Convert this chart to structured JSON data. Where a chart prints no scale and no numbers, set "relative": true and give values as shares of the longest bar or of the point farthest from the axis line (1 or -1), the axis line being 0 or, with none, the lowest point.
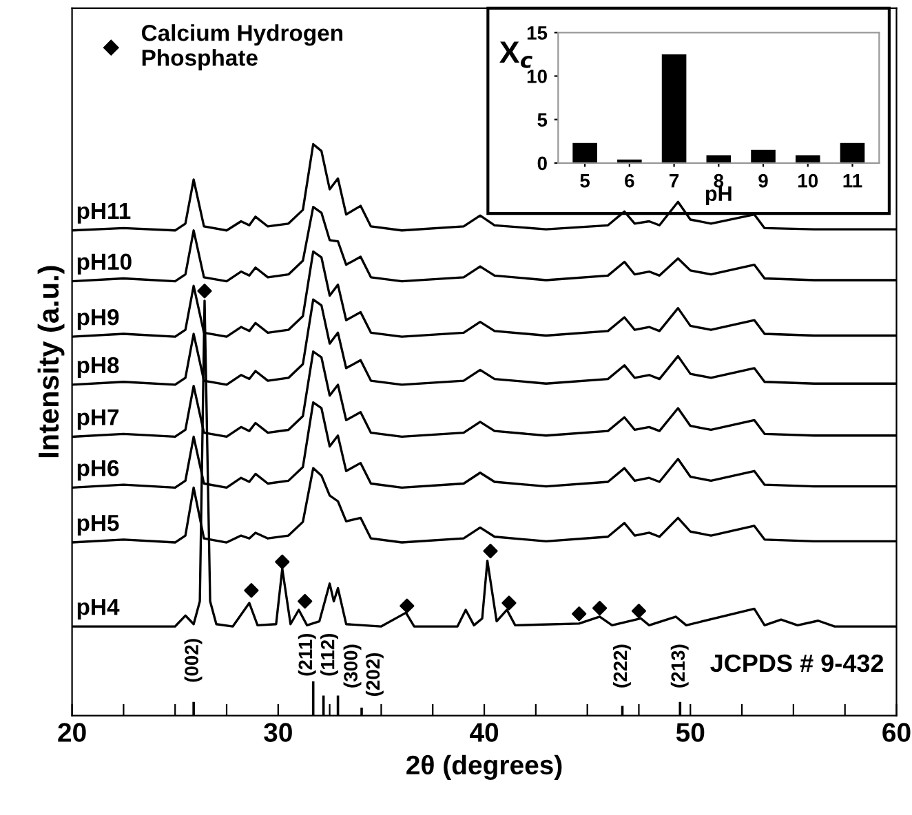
{
  "chart_data": [
    {
      "type": "line",
      "relative": true,
      "xlabel": "2θ (degrees)",
      "ylabel": "Intensity (a.u.)",
      "xlim": [
        20,
        60
      ],
      "xticks": [
        20,
        {
          "value": 22.5,
          "label": null
        },
        {
          "value": 25,
          "label": null
        },
        {
          "value": 27.5,
          "label": null
        },
        30,
        {
          "value": 32.5,
          "label": null
        },
        {
          "value": 35,
          "label": null
        },
        {
          "value": 37.5,
          "label": null
        },
        40,
        {
          "value": 42.5,
          "label": null
        },
        {
          "value": 45,
          "label": null
        },
        {
          "value": 47.5,
          "label": null
        },
        50,
        {
          "value": 52.5,
          "label": null
        },
        {
          "value": 55,
          "label": null
        },
        {
          "value": 57.5,
          "label": null
        },
        60
      ],
      "legend": "top left",
      "grid": false,
      "x": [
        20,
        22.5,
        25,
        25.5,
        25.9,
        26.4,
        27.5,
        28.2,
        28.6,
        28.9,
        29.5,
        30.5,
        31.2,
        31.7,
        32.1,
        32.5,
        32.9,
        33.3,
        34.0,
        34.5,
        36,
        39,
        39.8,
        40.5,
        43,
        46,
        46.8,
        47.3,
        48,
        48.5,
        49.4,
        50,
        51,
        53.1,
        53.6,
        56,
        60
      ],
      "series": [
        {
          "name": "pH11",
          "color": "#000000",
          "values": [
            0.849,
            0.853,
            0.849,
            0.861,
            0.938,
            0.856,
            0.849,
            0.865,
            0.858,
            0.873,
            0.856,
            0.861,
            0.885,
            1.0,
            0.988,
            0.921,
            0.94,
            0.877,
            0.892,
            0.856,
            0.849,
            0.856,
            0.875,
            0.858,
            0.851,
            0.858,
            0.882,
            0.861,
            0.865,
            0.858,
            0.899,
            0.868,
            0.861,
            0.877,
            0.853,
            0.851,
            0.851
          ]
        },
        {
          "name": "pH10",
          "color": "#000000",
          "values": [
            0.76,
            0.765,
            0.76,
            0.772,
            0.849,
            0.767,
            0.76,
            0.777,
            0.77,
            0.784,
            0.767,
            0.772,
            0.796,
            0.89,
            0.88,
            0.832,
            0.83,
            0.789,
            0.803,
            0.767,
            0.76,
            0.767,
            0.786,
            0.77,
            0.762,
            0.77,
            0.794,
            0.772,
            0.777,
            0.77,
            0.8,
            0.779,
            0.772,
            0.789,
            0.765,
            0.762,
            0.762
          ]
        },
        {
          "name": "pH9",
          "color": "#000000",
          "values": [
            0.663,
            0.668,
            0.663,
            0.675,
            0.752,
            0.67,
            0.663,
            0.68,
            0.673,
            0.687,
            0.67,
            0.675,
            0.699,
            0.812,
            0.802,
            0.735,
            0.754,
            0.692,
            0.706,
            0.67,
            0.663,
            0.67,
            0.689,
            0.673,
            0.665,
            0.673,
            0.697,
            0.675,
            0.68,
            0.673,
            0.713,
            0.682,
            0.675,
            0.692,
            0.668,
            0.665,
            0.665
          ]
        },
        {
          "name": "pH8",
          "color": "#000000",
          "values": [
            0.579,
            0.584,
            0.579,
            0.591,
            0.668,
            0.586,
            0.579,
            0.596,
            0.589,
            0.603,
            0.586,
            0.591,
            0.615,
            0.728,
            0.718,
            0.651,
            0.67,
            0.608,
            0.622,
            0.586,
            0.579,
            0.586,
            0.605,
            0.589,
            0.581,
            0.589,
            0.613,
            0.591,
            0.596,
            0.589,
            0.629,
            0.598,
            0.591,
            0.608,
            0.584,
            0.581,
            0.581
          ]
        },
        {
          "name": "pH7",
          "color": "#000000",
          "values": [
            0.488,
            0.493,
            0.488,
            0.5,
            0.577,
            0.495,
            0.488,
            0.505,
            0.498,
            0.512,
            0.495,
            0.5,
            0.524,
            0.637,
            0.627,
            0.56,
            0.579,
            0.517,
            0.531,
            0.495,
            0.488,
            0.495,
            0.514,
            0.498,
            0.49,
            0.498,
            0.522,
            0.5,
            0.505,
            0.498,
            0.538,
            0.507,
            0.5,
            0.517,
            0.493,
            0.49,
            0.49
          ]
        },
        {
          "name": "pH6",
          "color": "#000000",
          "values": [
            0.399,
            0.404,
            0.399,
            0.411,
            0.488,
            0.406,
            0.399,
            0.416,
            0.409,
            0.423,
            0.406,
            0.411,
            0.435,
            0.548,
            0.538,
            0.471,
            0.49,
            0.428,
            0.442,
            0.406,
            0.399,
            0.406,
            0.425,
            0.409,
            0.401,
            0.409,
            0.433,
            0.411,
            0.416,
            0.409,
            0.449,
            0.418,
            0.411,
            0.428,
            0.404,
            0.401,
            0.401
          ]
        },
        {
          "name": "pH5",
          "color": "#000000",
          "values": [
            0.303,
            0.308,
            0.303,
            0.315,
            0.399,
            0.31,
            0.303,
            0.315,
            0.31,
            0.32,
            0.31,
            0.315,
            0.339,
            0.433,
            0.42,
            0.385,
            0.375,
            0.34,
            0.346,
            0.31,
            0.303,
            0.31,
            0.329,
            0.313,
            0.305,
            0.313,
            0.337,
            0.315,
            0.32,
            0.313,
            0.346,
            0.322,
            0.315,
            0.332,
            0.308,
            0.305,
            0.305
          ]
        },
        {
          "name": "pH4",
          "color": "#000000",
          "x": [
            20,
            25.0,
            25.5,
            25.9,
            26.2,
            26.43,
            26.7,
            27.0,
            27.8,
            28.6,
            29.0,
            29.9,
            30.2,
            30.6,
            31.0,
            31.4,
            32.0,
            32.5,
            32.7,
            32.9,
            33.3,
            35.0,
            36.2,
            36.6,
            38.7,
            39.1,
            39.5,
            39.9,
            40.15,
            40.6,
            41.1,
            41.5,
            44.6,
            45.6,
            46.2,
            47.6,
            48.0,
            49.3,
            49.8,
            53.1,
            53.6,
            54.4,
            55.2,
            56.2,
            57,
            60
          ],
          "values": [
            0.156,
            0.156,
            0.175,
            0.16,
            0.2,
            0.726,
            0.2,
            0.16,
            0.156,
            0.197,
            0.158,
            0.16,
            0.257,
            0.16,
            0.185,
            0.158,
            0.165,
            0.231,
            0.2,
            0.223,
            0.16,
            0.156,
            0.18,
            0.156,
            0.156,
            0.185,
            0.158,
            0.17,
            0.271,
            0.165,
            0.185,
            0.158,
            0.161,
            0.173,
            0.158,
            0.17,
            0.158,
            0.173,
            0.158,
            0.187,
            0.158,
            0.168,
            0.158,
            0.166,
            0.156,
            0.156
          ]
        },
        {
          "name": "Calcium Hydrogen\nPhosphate",
          "type": "scatter",
          "marker": "diamond",
          "color": "#000000",
          "x": [
            26.43,
            28.7,
            30.2,
            31.3,
            36.25,
            40.3,
            41.2,
            44.6,
            45.6,
            47.5
          ],
          "values": [
            0.743,
            0.219,
            0.269,
            0.2,
            0.192,
            0.288,
            0.197,
            0.178,
            0.188,
            0.183
          ]
        },
        {
          "type": "bar",
          "color": "#000000",
          "x": [
            25.9,
            31.7,
            32.2,
            32.9,
            34.05,
            46.7,
            49.5
          ],
          "values": [
            0.024,
            0.06,
            0.035,
            0.035,
            0.014,
            0.017,
            0.024
          ]
        }
      ],
      "annotations": [
        "(002)",
        "(211)",
        "(112)",
        "(300)",
        "(202)",
        "(222)",
        "(213)",
        "JCPDS # 9-432"
      ]
    },
    {
      "type": "bar",
      "xlabel": "pH",
      "ylabel": "X$_{c}$",
      "categories": [
        "5",
        "6",
        "7",
        "8",
        "9",
        "10",
        "11"
      ],
      "color": "#000000",
      "values": [
        2.3,
        0.4,
        12.5,
        0.9,
        1.5,
        0.9,
        2.3
      ],
      "ylim": [
        0,
        15
      ],
      "yticks": [
        0,
        5,
        10,
        15
      ],
      "grid": false
    }
  ]
}
